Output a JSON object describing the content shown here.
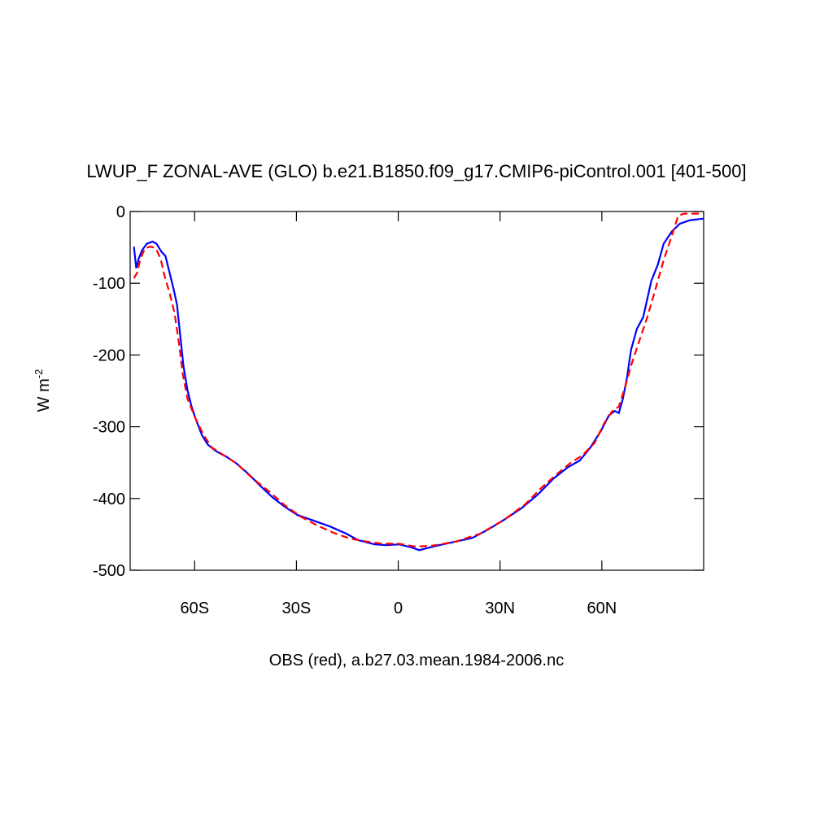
{
  "chart_data": {
    "type": "line",
    "title": "LWUP_F ZONAL-AVE (GLO) b.e21.B1850.f09_g17.CMIP6-piControl.001 [401-500]",
    "xlabel": "OBS (red), a.b27.03.mean.1984-2006.nc",
    "ylabel": "W m",
    "ylabel_exponent": "-2",
    "xlim": [
      -79,
      90
    ],
    "ylim": [
      -500,
      0
    ],
    "xticks": [
      {
        "value": -60,
        "label": "60S"
      },
      {
        "value": -30,
        "label": "30S"
      },
      {
        "value": 0,
        "label": "0"
      },
      {
        "value": 30,
        "label": "30N"
      },
      {
        "value": 60,
        "label": "60N"
      }
    ],
    "yticks": [
      0,
      -100,
      -200,
      -300,
      -400,
      -500
    ],
    "series": [
      {
        "color": "#0000ff",
        "dash": "solid",
        "x": [
          -77.9,
          -77.2,
          -76.5,
          -75.5,
          -74.1,
          -72.4,
          -71.2,
          -69.8,
          -68.6,
          -67.4,
          -66.2,
          -65.2,
          -64.3,
          -63.3,
          -62.1,
          -60.9,
          -59.7,
          -57.8,
          -56.1,
          -53.7,
          -50.6,
          -47.7,
          -44.1,
          -40.5,
          -36.9,
          -33.3,
          -29.7,
          -24.9,
          -20.1,
          -15.3,
          -11.8,
          -7.0,
          -3.4,
          0.2,
          3.8,
          6.2,
          8.6,
          12.2,
          17.0,
          21.8,
          26.6,
          31.4,
          36.2,
          41.0,
          45.8,
          50.1,
          53.5,
          56.6,
          59.7,
          62.1,
          63.8,
          65.0,
          66.2,
          67.4,
          68.6,
          70.3,
          72.2,
          74.6,
          76.5,
          78.2,
          80.6,
          83.0,
          86.1,
          89.9
        ],
        "values": [
          -49,
          -79,
          -66,
          -54,
          -45,
          -42,
          -45,
          -56,
          -62,
          -85,
          -108,
          -130,
          -170,
          -215,
          -249,
          -272,
          -289,
          -312,
          -325,
          -334,
          -342,
          -351,
          -366,
          -383,
          -399,
          -412,
          -423,
          -431,
          -439,
          -449,
          -458,
          -464,
          -465,
          -464,
          -468,
          -472,
          -469,
          -465,
          -460,
          -455,
          -443,
          -429,
          -414,
          -395,
          -372,
          -356,
          -347,
          -329,
          -306,
          -284,
          -278,
          -281,
          -261,
          -232,
          -193,
          -164,
          -147,
          -96,
          -74,
          -45,
          -28,
          -17,
          -12,
          -10
        ]
      },
      {
        "color": "#ff0000",
        "dash": "dashed",
        "x": [
          -77.9,
          -76.9,
          -76.0,
          -74.6,
          -72.9,
          -71.5,
          -70.0,
          -68.8,
          -67.4,
          -65.9,
          -64.7,
          -63.5,
          -62.1,
          -59.7,
          -57.3,
          -54.9,
          -51.3,
          -47.7,
          -42.9,
          -38.1,
          -33.3,
          -28.5,
          -23.7,
          -19.0,
          -14.1,
          -9.4,
          -4.6,
          0.2,
          5.0,
          9.8,
          17.0,
          24.2,
          31.4,
          37.4,
          42.2,
          47.0,
          50.6,
          54.2,
          57.8,
          60.7,
          63.1,
          65.0,
          66.9,
          68.6,
          71.0,
          73.4,
          75.8,
          78.2,
          80.6,
          82.5,
          84.2,
          89.9
        ],
        "values": [
          -93,
          -85,
          -66,
          -51,
          -49,
          -51,
          -66,
          -91,
          -113,
          -142,
          -181,
          -227,
          -261,
          -289,
          -312,
          -329,
          -340,
          -351,
          -372,
          -390,
          -410,
          -426,
          -438,
          -448,
          -456,
          -460,
          -463,
          -463,
          -467,
          -466,
          -460,
          -449,
          -429,
          -408,
          -385,
          -365,
          -351,
          -340,
          -323,
          -295,
          -278,
          -272,
          -244,
          -215,
          -181,
          -147,
          -108,
          -68,
          -34,
          -6,
          -3,
          -3
        ]
      }
    ]
  }
}
